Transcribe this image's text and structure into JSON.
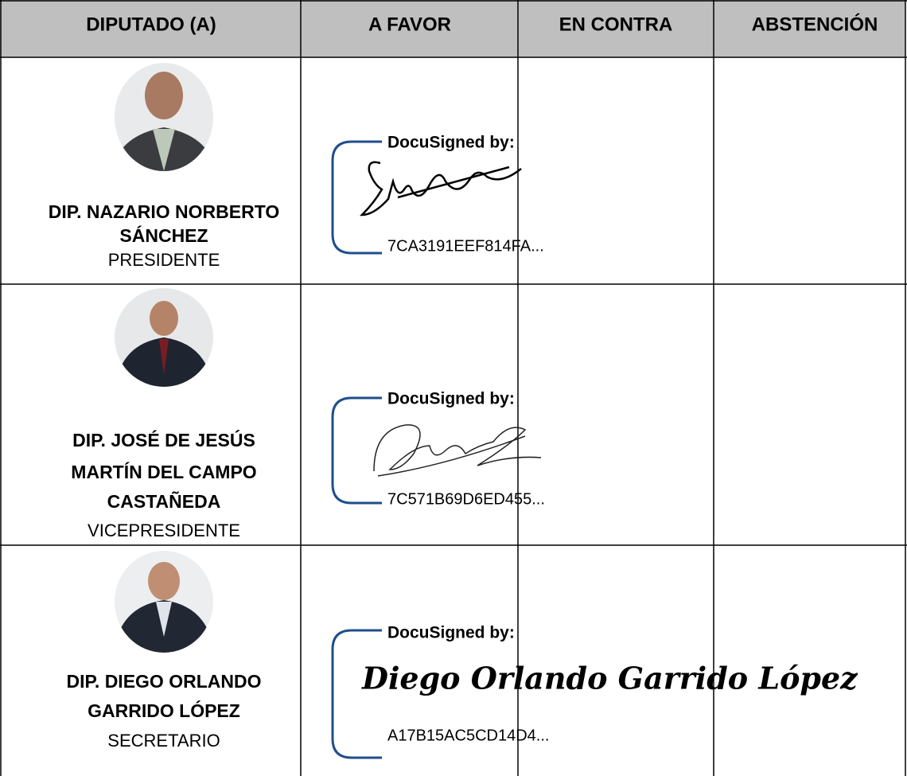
{
  "header": {
    "columns": [
      "DIPUTADO (A)",
      "A FAVOR",
      "EN CONTRA",
      "ABSTENCIÓN"
    ]
  },
  "rows": [
    {
      "name_lines": [
        "DIP. NAZARIO NORBERTO",
        "SÁNCHEZ"
      ],
      "role": "PRESIDENTE",
      "signature": {
        "label": "DocuSigned by:",
        "id": "7CA3191EEF814FA..."
      }
    },
    {
      "name_lines": [
        "DIP. JOSÉ DE JESÚS",
        "MARTÍN DEL CAMPO",
        "CASTAÑEDA"
      ],
      "role": "VICEPRESIDENTE",
      "signature": {
        "label": "DocuSigned by:",
        "id": "7C571B69D6ED455..."
      }
    },
    {
      "name_lines": [
        "DIP. DIEGO ORLANDO",
        "GARRIDO LÓPEZ"
      ],
      "role": "SECRETARIO",
      "signature": {
        "label": "DocuSigned by:",
        "signed_name": "Diego Orlando Garrido López",
        "id": "A17B15AC5CD14D4..."
      }
    }
  ]
}
